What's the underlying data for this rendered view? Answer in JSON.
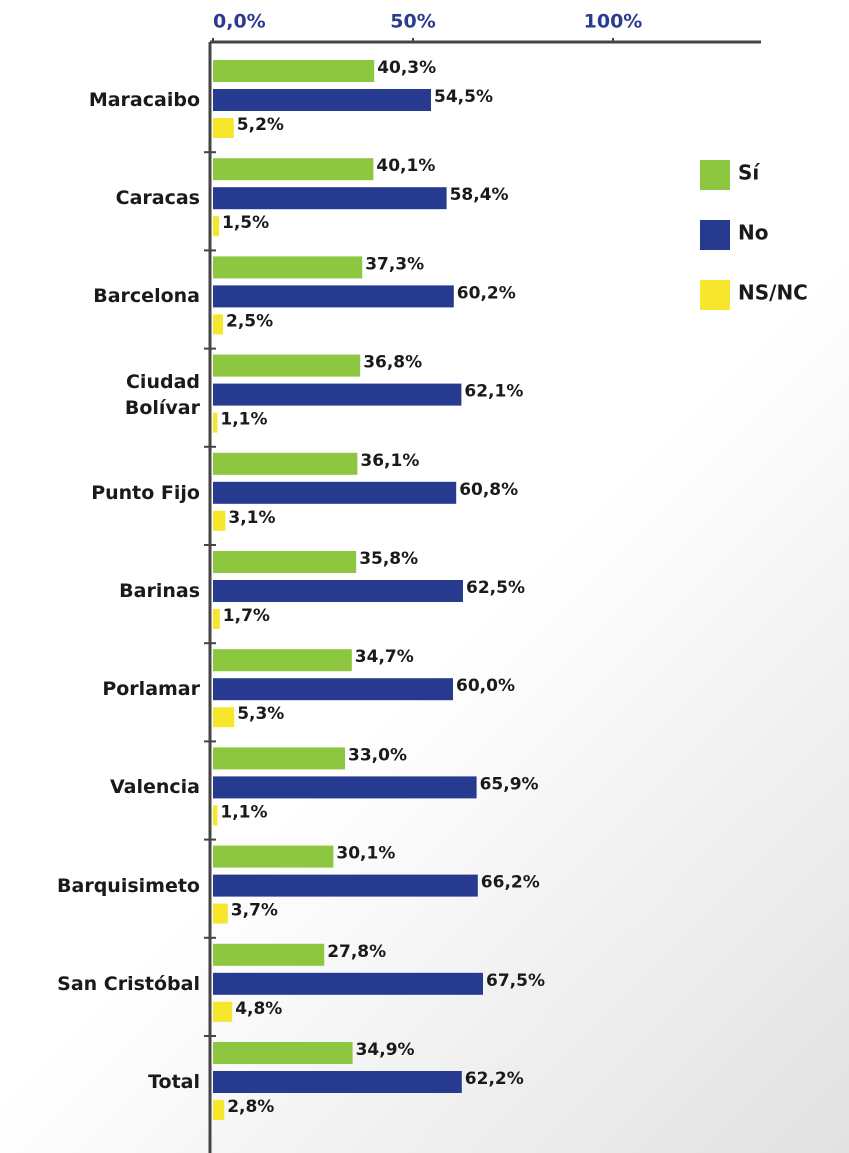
{
  "chart_data": {
    "type": "bar",
    "orientation": "horizontal",
    "categories": [
      "Maracaibo",
      "Caracas",
      "Barcelona",
      "Ciudad\nBolívar",
      "Punto Fijo",
      "Barinas",
      "Porlamar",
      "Valencia",
      "Barquisimeto",
      "San Cristóbal",
      "Total"
    ],
    "series": [
      {
        "name": "Sí",
        "color": "#8dc63f",
        "values": [
          40.3,
          40.1,
          37.3,
          36.8,
          36.1,
          35.8,
          34.7,
          33.0,
          30.1,
          27.8,
          34.9
        ],
        "value_labels": [
          "40,3%",
          "40,1%",
          "37,3%",
          "36,8%",
          "36,1%",
          "35,8%",
          "34,7%",
          "33,0%",
          "30,1%",
          "27,8%",
          "34,9%"
        ]
      },
      {
        "name": "No",
        "color": "#263a8f",
        "values": [
          54.5,
          58.4,
          60.2,
          62.1,
          60.8,
          62.5,
          60.0,
          65.9,
          66.2,
          67.5,
          62.2
        ],
        "value_labels": [
          "54,5%",
          "58,4%",
          "60,2%",
          "62,1%",
          "60,8%",
          "62,5%",
          "60,0%",
          "65,9%",
          "66,2%",
          "67,5%",
          "62,2%"
        ]
      },
      {
        "name": "NS/NC",
        "color": "#f6e62c",
        "values": [
          5.2,
          1.5,
          2.5,
          1.1,
          3.1,
          1.7,
          5.3,
          1.1,
          3.7,
          4.8,
          2.8
        ],
        "value_labels": [
          "5,2%",
          "1,5%",
          "2,5%",
          "1,1%",
          "3,1%",
          "1,7%",
          "5,3%",
          "1,1%",
          "3,7%",
          "4,8%",
          "2,8%"
        ]
      }
    ],
    "xlim": [
      0,
      135
    ],
    "xticks": [
      {
        "value": 0,
        "label": "0,0%"
      },
      {
        "value": 50,
        "label": "50%"
      },
      {
        "value": 100,
        "label": "100%"
      }
    ],
    "legend": "right"
  }
}
